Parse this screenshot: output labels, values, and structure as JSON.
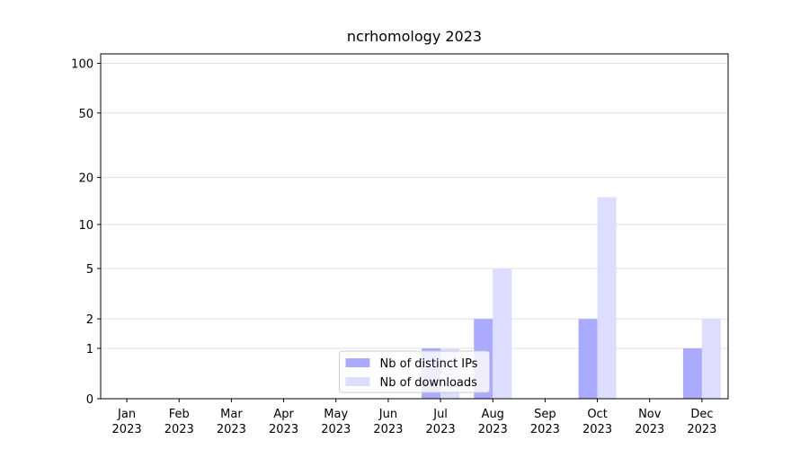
{
  "chart_data": {
    "type": "bar",
    "title": "ncrhomology 2023",
    "categories": [
      "Jan 2023",
      "Feb 2023",
      "Mar 2023",
      "Apr 2023",
      "May 2023",
      "Jun 2023",
      "Jul 2023",
      "Aug 2023",
      "Sep 2023",
      "Oct 2023",
      "Nov 2023",
      "Dec 2023"
    ],
    "series": [
      {
        "name": "Nb of distinct IPs",
        "color": "#aaaaff",
        "values": [
          0,
          0,
          0,
          0,
          0,
          0,
          1,
          2,
          0,
          2,
          0,
          1
        ]
      },
      {
        "name": "Nb of downloads",
        "color": "#ddddff",
        "values": [
          0,
          0,
          0,
          0,
          0,
          0,
          1,
          5,
          0,
          15,
          0,
          2
        ]
      }
    ],
    "yscale": "log1p",
    "ylim": [
      0,
      114
    ],
    "yticks": [
      0,
      1,
      2,
      5,
      10,
      20,
      50,
      100
    ],
    "grid": true,
    "legend": "lower center"
  }
}
